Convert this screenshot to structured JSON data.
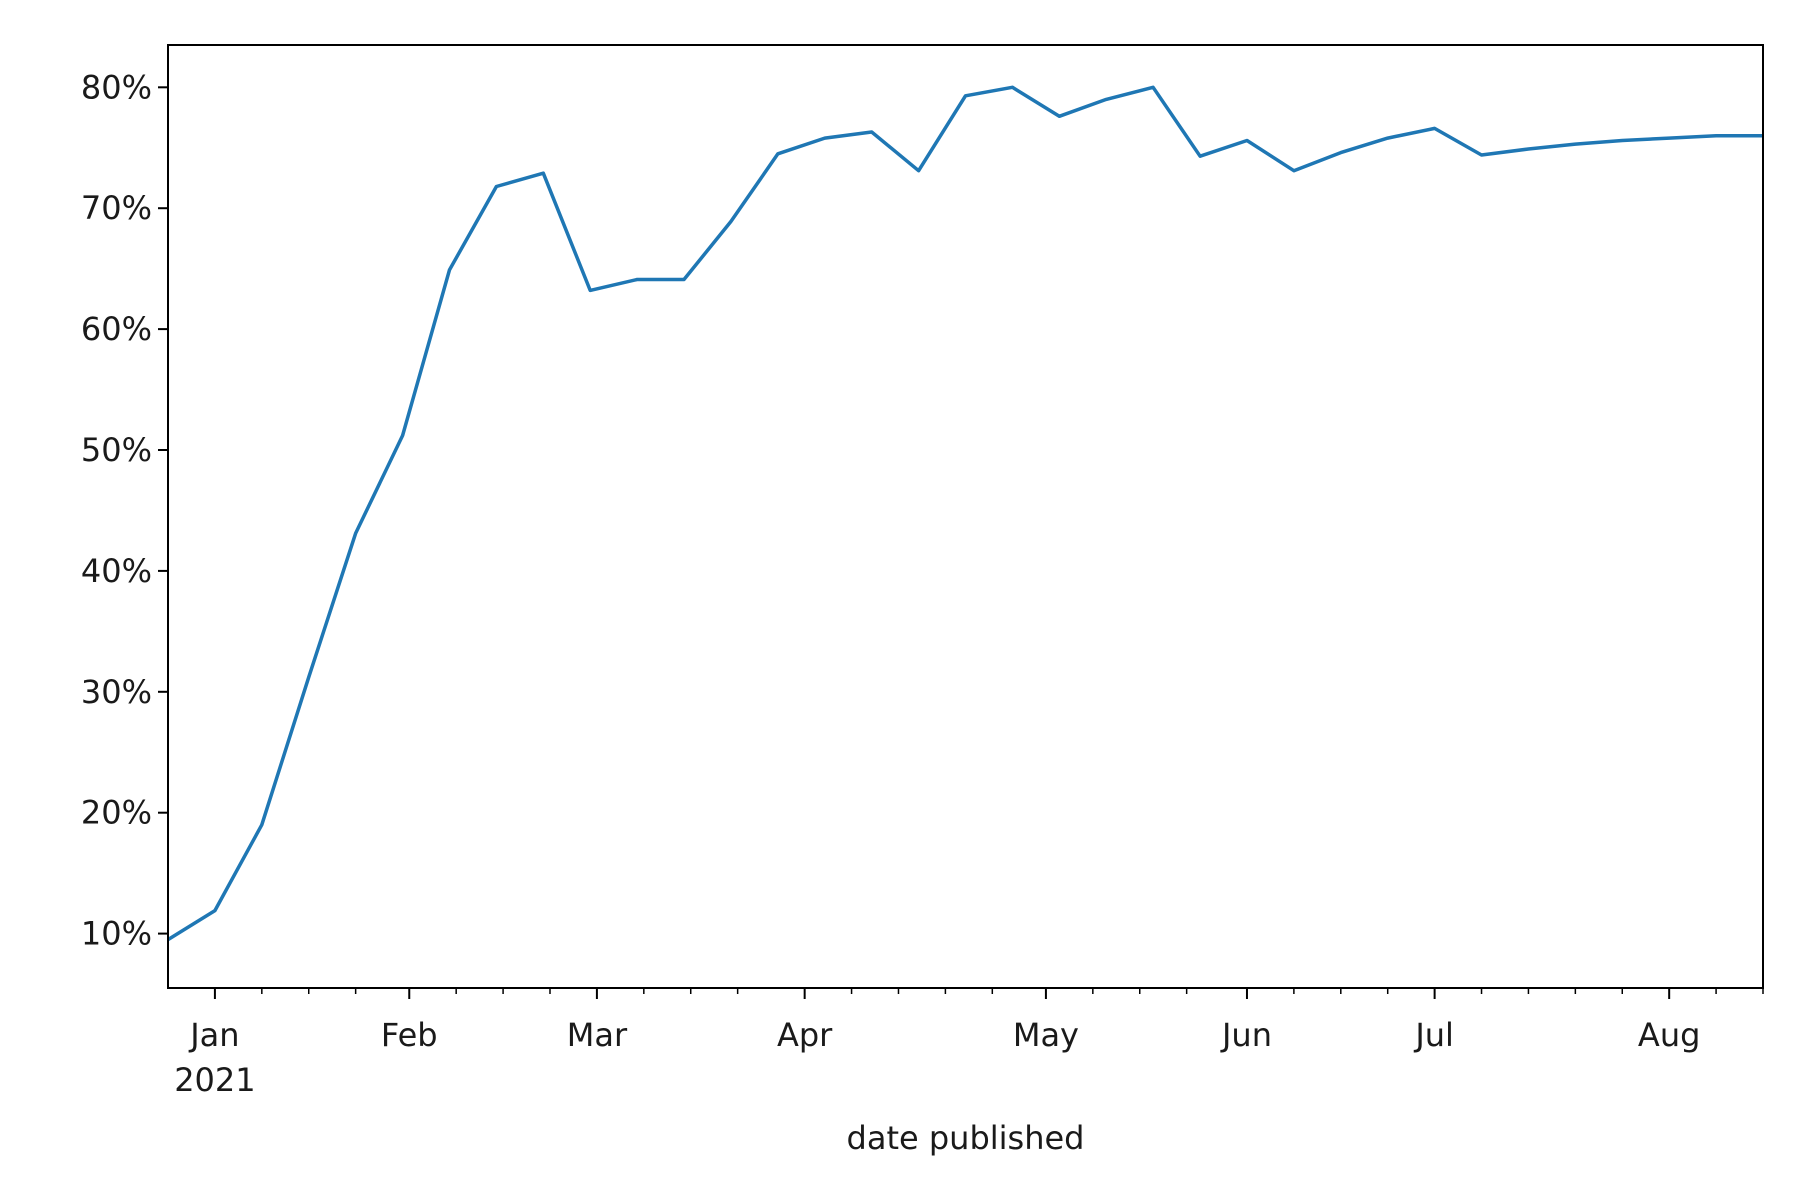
{
  "chart_data": {
    "type": "line",
    "title": "",
    "xlabel": "date published",
    "ylabel": "",
    "grid": false,
    "legend": "none",
    "xlim": [
      "2020-12-27",
      "2021-08-22"
    ],
    "ylim": [
      0.055,
      0.835
    ],
    "x_ticks": [
      {
        "date": "2021-01-03",
        "label": "Jan",
        "sublabel": "2021"
      },
      {
        "date": "2021-02-01",
        "label": "Feb"
      },
      {
        "date": "2021-03-01",
        "label": "Mar"
      },
      {
        "date": "2021-04-01",
        "label": "Apr"
      },
      {
        "date": "2021-05-07",
        "label": "May"
      },
      {
        "date": "2021-06-06",
        "label": "Jun"
      },
      {
        "date": "2021-07-04",
        "label": "Jul"
      },
      {
        "date": "2021-08-08",
        "label": "Aug"
      }
    ],
    "x_minor_ticks": [
      "2021-01-10",
      "2021-01-17",
      "2021-01-24",
      "2021-02-08",
      "2021-02-15",
      "2021-02-22",
      "2021-03-08",
      "2021-03-15",
      "2021-03-22",
      "2021-04-08",
      "2021-04-15",
      "2021-04-22",
      "2021-04-29",
      "2021-05-14",
      "2021-05-21",
      "2021-05-28",
      "2021-06-13",
      "2021-06-20",
      "2021-06-27",
      "2021-07-11",
      "2021-07-18",
      "2021-07-25",
      "2021-08-01",
      "2021-08-15",
      "2021-08-22"
    ],
    "y_ticks": [
      {
        "value": 0.1,
        "label": "10%"
      },
      {
        "value": 0.2,
        "label": "20%"
      },
      {
        "value": 0.3,
        "label": "30%"
      },
      {
        "value": 0.4,
        "label": "40%"
      },
      {
        "value": 0.5,
        "label": "50%"
      },
      {
        "value": 0.6,
        "label": "60%"
      },
      {
        "value": 0.7,
        "label": "70%"
      },
      {
        "value": 0.8,
        "label": "80%"
      }
    ],
    "series": [
      {
        "color": "#1f77b4",
        "x": [
          "2020-12-27",
          "2021-01-03",
          "2021-01-10",
          "2021-01-17",
          "2021-01-24",
          "2021-01-31",
          "2021-02-07",
          "2021-02-14",
          "2021-02-21",
          "2021-02-28",
          "2021-03-07",
          "2021-03-14",
          "2021-03-21",
          "2021-03-28",
          "2021-04-04",
          "2021-04-11",
          "2021-04-18",
          "2021-04-25",
          "2021-05-02",
          "2021-05-09",
          "2021-05-16",
          "2021-05-23",
          "2021-05-30",
          "2021-06-06",
          "2021-06-13",
          "2021-06-20",
          "2021-06-27",
          "2021-07-04",
          "2021-07-11",
          "2021-07-18",
          "2021-07-25",
          "2021-08-01",
          "2021-08-08",
          "2021-08-15",
          "2021-08-22"
        ],
        "values": [
          0.095,
          0.119,
          0.19,
          0.312,
          0.431,
          0.512,
          0.649,
          0.718,
          0.729,
          0.632,
          0.641,
          0.641,
          0.689,
          0.745,
          0.758,
          0.763,
          0.731,
          0.793,
          0.8,
          0.776,
          0.79,
          0.8,
          0.743,
          0.756,
          0.731,
          0.746,
          0.758,
          0.766,
          0.744,
          0.749,
          0.753,
          0.756,
          0.758,
          0.76,
          0.76
        ]
      }
    ]
  }
}
